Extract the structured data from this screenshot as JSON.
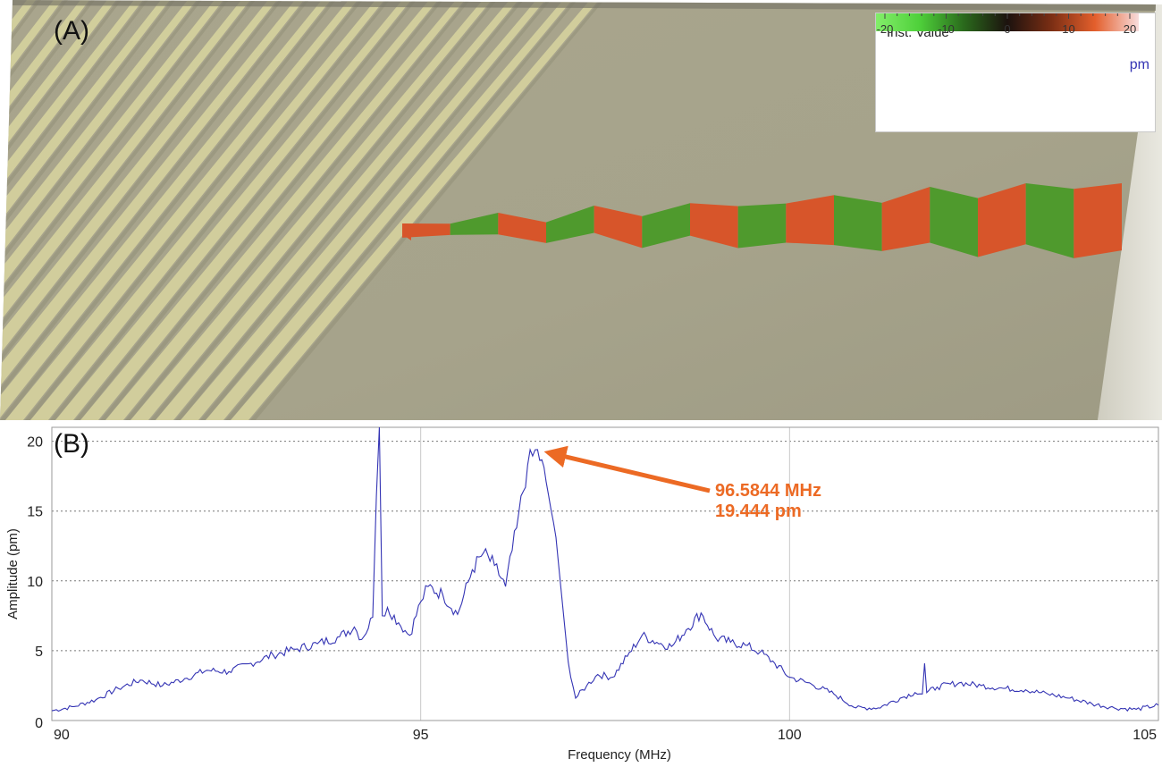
{
  "panel_a": {
    "label": "(A)",
    "legend": {
      "title": "Inst. Value",
      "unit": "pm",
      "ticks": [
        "-20",
        "-10",
        "0",
        "10",
        "20"
      ],
      "range": [
        -20,
        20
      ],
      "gradient_colors": [
        "#83ee6a",
        "#4ed03a",
        "#2a6a1c",
        "#1c120e",
        "#7a2e14",
        "#e35f2c",
        "#f8dcdc"
      ]
    },
    "colors": {
      "surface": "#a7a38a",
      "grating_light": "#d8d59f",
      "grating_dark": "#8f8b73",
      "wave_red": "#d7552a",
      "wave_green": "#4f9a2d"
    }
  },
  "panel_b": {
    "label": "(B)",
    "annotation": {
      "line1": "96.5844 MHz",
      "line2": "19.444 pm",
      "color": "#ec6a24",
      "target": [
        96.5844,
        19.444
      ]
    }
  },
  "chart_data": {
    "type": "line",
    "xlabel": "Frequency (MHz)",
    "ylabel": "Amplitude (pm)",
    "xlim": [
      90,
      105
    ],
    "ylim": [
      0,
      21
    ],
    "x_ticks": [
      90,
      95,
      100,
      105
    ],
    "y_ticks": [
      0,
      5,
      10,
      15,
      20
    ],
    "grid": "dotted",
    "line_color": "#3434b4",
    "series": [
      {
        "x": [
          90,
          90.3,
          90.6,
          90.9,
          91.2,
          91.5,
          91.8,
          92.1,
          92.4,
          92.7,
          93.0,
          93.3,
          93.6,
          93.9,
          94.1,
          94.2,
          94.35,
          94.4,
          94.44,
          94.48,
          94.55,
          94.7,
          94.85,
          95.0,
          95.1,
          95.3,
          95.5,
          95.7,
          95.85,
          96.0,
          96.15,
          96.3,
          96.45,
          96.5844,
          96.7,
          96.8,
          96.9,
          97.0,
          97.1,
          97.25,
          97.4,
          97.6,
          97.8,
          98.0,
          98.2,
          98.4,
          98.6,
          98.8,
          99.0,
          99.2,
          99.4,
          99.6,
          99.8,
          100.0,
          100.3,
          100.6,
          100.9,
          101.2,
          101.5,
          101.7,
          101.8,
          101.83,
          101.86,
          102.0,
          102.3,
          102.6,
          102.9,
          103.2,
          103.5,
          103.8,
          104.1,
          104.4,
          104.7,
          105.0
        ],
        "y": [
          0.7,
          1.0,
          1.5,
          2.3,
          2.9,
          2.5,
          3.0,
          3.6,
          3.5,
          4.1,
          4.7,
          5.1,
          5.5,
          6.0,
          6.7,
          5.8,
          7.4,
          16.1,
          21.0,
          7.5,
          8.1,
          7.0,
          6.1,
          8.5,
          9.6,
          9.0,
          7.6,
          10.8,
          12.0,
          11.1,
          9.6,
          13.8,
          18.3,
          19.4,
          17.1,
          14.2,
          9.5,
          4.2,
          1.6,
          2.5,
          3.3,
          3.1,
          4.6,
          6.1,
          5.6,
          5.3,
          6.5,
          7.7,
          5.9,
          5.6,
          5.4,
          4.9,
          4.1,
          3.1,
          2.6,
          1.9,
          0.9,
          0.9,
          1.6,
          2.0,
          1.9,
          4.1,
          2.0,
          2.4,
          2.7,
          2.5,
          2.3,
          2.2,
          1.9,
          1.6,
          1.2,
          0.9,
          0.8,
          1.1
        ]
      }
    ]
  }
}
